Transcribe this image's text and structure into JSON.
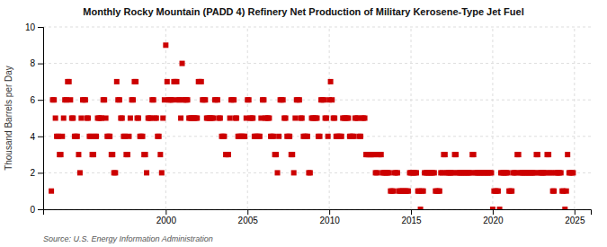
{
  "chart_data": {
    "type": "scatter",
    "title": "Monthly Rocky Mountain (PADD 4) Refinery Net Production of Military Kerosene-Type Jet Fuel",
    "ylabel": "Thousand Barrels per Day",
    "source": "Source: U.S. Energy Information Administration",
    "color": "#cc0000",
    "marker": "square",
    "grid": true,
    "xlim": [
      1992.5,
      2026
    ],
    "ylim": [
      0,
      10
    ],
    "xticks": [
      2000,
      2005,
      2010,
      2015,
      2020,
      2025
    ],
    "yticks": [
      0,
      2,
      4,
      6,
      8,
      10
    ],
    "x": [
      1993.0,
      1993.08,
      1993.17,
      1993.25,
      1993.33,
      1993.42,
      1993.5,
      1993.58,
      1993.67,
      1993.75,
      1993.83,
      1993.92,
      1994.0,
      1994.08,
      1994.17,
      1994.25,
      1994.33,
      1994.42,
      1994.5,
      1994.58,
      1994.67,
      1994.75,
      1994.83,
      1994.92,
      1995.0,
      1995.08,
      1995.17,
      1995.25,
      1995.33,
      1995.42,
      1995.5,
      1995.58,
      1995.67,
      1995.75,
      1995.83,
      1995.92,
      1996.0,
      1996.08,
      1996.17,
      1996.25,
      1996.33,
      1996.42,
      1996.5,
      1996.58,
      1996.67,
      1996.75,
      1996.83,
      1996.92,
      1997.0,
      1997.08,
      1997.17,
      1997.25,
      1997.33,
      1997.42,
      1997.5,
      1997.58,
      1997.67,
      1997.75,
      1997.83,
      1997.92,
      1998.0,
      1998.08,
      1998.17,
      1998.25,
      1998.33,
      1998.42,
      1998.5,
      1998.58,
      1998.67,
      1998.75,
      1998.83,
      1998.92,
      1999.0,
      1999.08,
      1999.17,
      1999.25,
      1999.33,
      1999.42,
      1999.5,
      1999.58,
      1999.67,
      1999.75,
      1999.83,
      1999.92,
      2000.0,
      2000.08,
      2000.17,
      2000.25,
      2000.33,
      2000.42,
      2000.5,
      2000.58,
      2000.67,
      2000.75,
      2000.83,
      2000.92,
      2001.0,
      2001.08,
      2001.17,
      2001.25,
      2001.33,
      2001.42,
      2001.5,
      2001.58,
      2001.67,
      2001.75,
      2001.83,
      2001.92,
      2002.0,
      2002.08,
      2002.17,
      2002.25,
      2002.33,
      2002.42,
      2002.5,
      2002.58,
      2002.67,
      2002.75,
      2002.83,
      2002.92,
      2003.0,
      2003.08,
      2003.17,
      2003.25,
      2003.33,
      2003.42,
      2003.5,
      2003.58,
      2003.67,
      2003.75,
      2003.83,
      2003.92,
      2004.0,
      2004.08,
      2004.17,
      2004.25,
      2004.33,
      2004.42,
      2004.5,
      2004.58,
      2004.67,
      2004.75,
      2004.83,
      2004.92,
      2005.0,
      2005.08,
      2005.17,
      2005.25,
      2005.33,
      2005.42,
      2005.5,
      2005.58,
      2005.67,
      2005.75,
      2005.83,
      2005.92,
      2006.0,
      2006.08,
      2006.17,
      2006.25,
      2006.33,
      2006.42,
      2006.5,
      2006.58,
      2006.67,
      2006.75,
      2006.83,
      2006.92,
      2007.0,
      2007.08,
      2007.17,
      2007.25,
      2007.33,
      2007.42,
      2007.5,
      2007.58,
      2007.67,
      2007.75,
      2007.83,
      2007.92,
      2008.0,
      2008.08,
      2008.17,
      2008.25,
      2008.33,
      2008.42,
      2008.5,
      2008.58,
      2008.67,
      2008.75,
      2008.83,
      2008.92,
      2009.0,
      2009.08,
      2009.17,
      2009.25,
      2009.33,
      2009.42,
      2009.5,
      2009.58,
      2009.67,
      2009.75,
      2009.83,
      2009.92,
      2010.0,
      2010.08,
      2010.17,
      2010.25,
      2010.33,
      2010.42,
      2010.5,
      2010.58,
      2010.67,
      2010.75,
      2010.83,
      2010.92,
      2011.0,
      2011.08,
      2011.17,
      2011.25,
      2011.33,
      2011.42,
      2011.5,
      2011.58,
      2011.67,
      2011.75,
      2011.83,
      2011.92,
      2012.0,
      2012.08,
      2012.17,
      2012.25,
      2012.33,
      2012.42,
      2012.5,
      2012.58,
      2012.67,
      2012.75,
      2012.83,
      2012.92,
      2013.0,
      2013.08,
      2013.17,
      2013.25,
      2013.33,
      2013.42,
      2013.5,
      2013.58,
      2013.67,
      2013.75,
      2013.83,
      2013.92,
      2014.0,
      2014.08,
      2014.17,
      2014.25,
      2014.33,
      2014.42,
      2014.5,
      2014.58,
      2014.67,
      2014.75,
      2014.83,
      2014.92,
      2015.0,
      2015.08,
      2015.17,
      2015.25,
      2015.33,
      2015.42,
      2015.5,
      2015.58,
      2015.67,
      2015.75,
      2015.83,
      2015.92,
      2016.0,
      2016.08,
      2016.17,
      2016.25,
      2016.33,
      2016.42,
      2016.5,
      2016.58,
      2016.67,
      2016.75,
      2016.83,
      2016.92,
      2017.0,
      2017.08,
      2017.17,
      2017.25,
      2017.33,
      2017.42,
      2017.5,
      2017.58,
      2017.67,
      2017.75,
      2017.83,
      2017.92,
      2018.0,
      2018.08,
      2018.17,
      2018.25,
      2018.33,
      2018.42,
      2018.5,
      2018.58,
      2018.67,
      2018.75,
      2018.83,
      2018.92,
      2019.0,
      2019.08,
      2019.17,
      2019.25,
      2019.33,
      2019.42,
      2019.5,
      2019.58,
      2019.67,
      2019.75,
      2019.83,
      2019.92,
      2020.0,
      2020.08,
      2020.17,
      2020.25,
      2020.33,
      2020.42,
      2020.5,
      2020.58,
      2020.67,
      2020.75,
      2020.83,
      2020.92,
      2021.0,
      2021.08,
      2021.17,
      2021.25,
      2021.33,
      2021.42,
      2021.5,
      2021.58,
      2021.67,
      2021.75,
      2021.83,
      2021.92,
      2022.0,
      2022.08,
      2022.17,
      2022.25,
      2022.33,
      2022.42,
      2022.5,
      2022.58,
      2022.67,
      2022.75,
      2022.83,
      2022.92,
      2023.0,
      2023.08,
      2023.17,
      2023.25,
      2023.33,
      2023.42,
      2023.5,
      2023.58,
      2023.67,
      2023.75,
      2023.83,
      2023.92,
      2024.0,
      2024.08,
      2024.17,
      2024.25,
      2024.33,
      2024.42,
      2024.5,
      2024.58,
      2024.67,
      2024.75,
      2024.83,
      2024.92
    ],
    "values": [
      1,
      6,
      6,
      5,
      4,
      4,
      3,
      3,
      4,
      5,
      6,
      6,
      7,
      7,
      6,
      5,
      5,
      4,
      4,
      4,
      3,
      2,
      5,
      6,
      6,
      6,
      5,
      5,
      4,
      4,
      3,
      3,
      4,
      4,
      5,
      5,
      5,
      5,
      6,
      6,
      5,
      4,
      4,
      4,
      3,
      3,
      2,
      2,
      7,
      6,
      6,
      5,
      5,
      4,
      4,
      3,
      3,
      4,
      5,
      6,
      6,
      7,
      7,
      5,
      5,
      4,
      4,
      4,
      3,
      3,
      2,
      5,
      5,
      5,
      6,
      6,
      5,
      5,
      4,
      4,
      3,
      2,
      5,
      6,
      9,
      7,
      6,
      6,
      6,
      6,
      7,
      7,
      7,
      6,
      6,
      5,
      8,
      6,
      6,
      6,
      6,
      5,
      5,
      5,
      5,
      5,
      5,
      5,
      7,
      7,
      7,
      6,
      6,
      6,
      5,
      5,
      5,
      5,
      5,
      5,
      6,
      6,
      6,
      5,
      5,
      4,
      4,
      4,
      3,
      3,
      3,
      5,
      6,
      6,
      6,
      5,
      5,
      4,
      4,
      4,
      4,
      4,
      4,
      5,
      6,
      6,
      5,
      5,
      5,
      4,
      4,
      4,
      4,
      4,
      5,
      6,
      6,
      5,
      5,
      5,
      5,
      4,
      4,
      4,
      3,
      3,
      2,
      4,
      6,
      6,
      6,
      5,
      5,
      4,
      4,
      4,
      3,
      3,
      2,
      5,
      6,
      6,
      6,
      5,
      5,
      4,
      4,
      4,
      4,
      2,
      2,
      5,
      5,
      5,
      5,
      5,
      4,
      4,
      6,
      6,
      6,
      5,
      5,
      4,
      6,
      7,
      6,
      5,
      5,
      4,
      4,
      4,
      4,
      4,
      5,
      5,
      5,
      5,
      5,
      4,
      4,
      4,
      4,
      5,
      5,
      5,
      4,
      4,
      5,
      5,
      5,
      3,
      3,
      3,
      3,
      3,
      3,
      3,
      2,
      2,
      3,
      3,
      3,
      2,
      2,
      2,
      2,
      2,
      2,
      1,
      1,
      1,
      2,
      2,
      2,
      1,
      1,
      1,
      1,
      1,
      1,
      1,
      1,
      2,
      2,
      2,
      2,
      2,
      2,
      1,
      1,
      0,
      1,
      1,
      2,
      2,
      2,
      2,
      2,
      2,
      2,
      2,
      1,
      1,
      1,
      1,
      2,
      2,
      3,
      3,
      2,
      2,
      2,
      2,
      2,
      2,
      3,
      3,
      2,
      2,
      2,
      2,
      2,
      2,
      2,
      2,
      2,
      2,
      2,
      3,
      3,
      2,
      2,
      2,
      2,
      2,
      2,
      2,
      2,
      2,
      2,
      2,
      2,
      2,
      0,
      1,
      1,
      1,
      1,
      0,
      2,
      2,
      2,
      2,
      2,
      2,
      1,
      1,
      1,
      2,
      2,
      2,
      3,
      3,
      2,
      2,
      2,
      2,
      2,
      2,
      2,
      2,
      2,
      2,
      2,
      2,
      3,
      3,
      2,
      2,
      2,
      2,
      2,
      2,
      3,
      3,
      2,
      2,
      1,
      1,
      2,
      2,
      2,
      2,
      2,
      1,
      1,
      0,
      1,
      3,
      2,
      2,
      2,
      2
    ]
  }
}
